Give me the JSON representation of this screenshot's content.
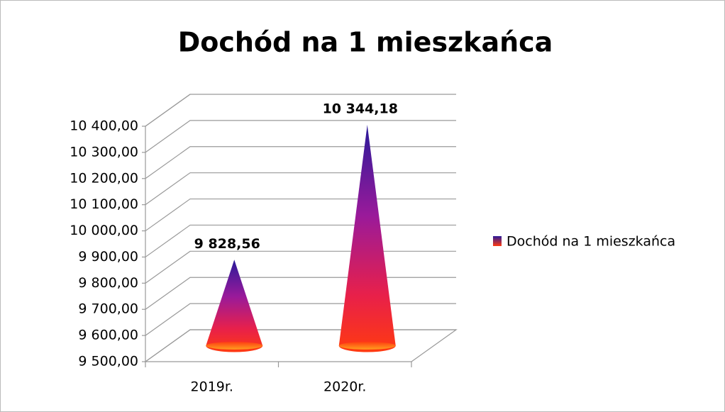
{
  "chart_data": {
    "type": "cone",
    "title": "Dochód na 1 mieszkańca",
    "categories": [
      "2019r.",
      "2020r."
    ],
    "series": [
      {
        "name": "Dochód na 1 mieszkańca",
        "values": [
          9828.56,
          10344.18
        ],
        "value_labels": [
          "9 828,56",
          "10 344,18"
        ]
      }
    ],
    "ylim": [
      9500,
      10400
    ],
    "yticks": [
      {
        "value": 9500,
        "label": "9 500,00"
      },
      {
        "value": 9600,
        "label": "9 600,00"
      },
      {
        "value": 9700,
        "label": "9 700,00"
      },
      {
        "value": 9800,
        "label": "9 800,00"
      },
      {
        "value": 9900,
        "label": "9 900,00"
      },
      {
        "value": 10000,
        "label": "10 000,00"
      },
      {
        "value": 10100,
        "label": "10 100,00"
      },
      {
        "value": 10200,
        "label": "10 200,00"
      },
      {
        "value": 10300,
        "label": "10 300,00"
      },
      {
        "value": 10400,
        "label": "10 400,00"
      }
    ],
    "grid": true,
    "legend": "right"
  }
}
